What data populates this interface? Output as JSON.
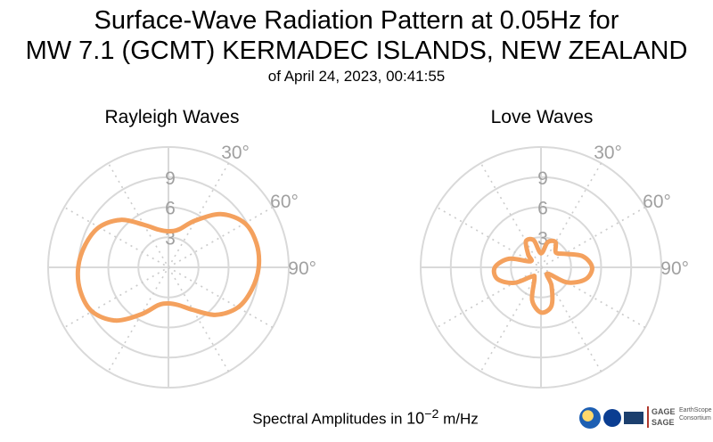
{
  "title": {
    "line1": "Surface-Wave Radiation Pattern at 0.05Hz for",
    "line2": "MW 7.1 (GCMT) KERMADEC ISLANDS, NEW ZEALAND",
    "line3": "of April 24, 2023, 00:41:55"
  },
  "footer": {
    "text": "Spectral Amplitudes in ",
    "base": "10",
    "exponent": "−2",
    "unit": " m/Hz"
  },
  "logos": {
    "gage": "GAGE",
    "sage": "SAGE",
    "earthscope": "EarthScope",
    "consortium": "Consortium"
  },
  "colors": {
    "curve": "#f4a15e",
    "grid": "#d9d9d9",
    "grid_dotted": "#cccccc",
    "tick_label": "#a0a0a0"
  },
  "chart_data": [
    {
      "type": "polar-line",
      "title": "Rayleigh Waves",
      "angle_zero": "north",
      "angle_direction": "clockwise",
      "radial_max": 12,
      "radial_ticks": [
        3,
        6,
        9
      ],
      "radial_tick_labels": [
        "3",
        "6",
        "9"
      ],
      "angle_tick_labels": [
        "30°",
        "60°",
        "90°"
      ],
      "angle_ticks_deg": [
        30,
        60,
        90
      ],
      "gridlines_deg_step": 30,
      "series": [
        {
          "theta_deg": [
            0,
            15,
            30,
            45,
            60,
            75,
            90,
            105,
            120,
            135,
            150,
            165,
            180,
            195,
            210,
            225,
            240,
            255,
            270,
            285,
            300,
            315,
            330,
            345
          ],
          "r": [
            3.6,
            3.9,
            5.4,
            7.5,
            8.8,
            9.1,
            9.0,
            8.6,
            8.0,
            6.7,
            4.9,
            3.9,
            3.6,
            3.9,
            5.4,
            7.5,
            8.8,
            9.1,
            9.0,
            8.6,
            8.0,
            6.7,
            4.9,
            3.9
          ]
        }
      ]
    },
    {
      "type": "polar-line",
      "title": "Love Waves",
      "angle_zero": "north",
      "angle_direction": "clockwise",
      "radial_max": 12,
      "radial_ticks": [
        3,
        6,
        9
      ],
      "radial_tick_labels": [
        "3",
        "6",
        "9"
      ],
      "angle_tick_labels": [
        "30°",
        "60°",
        "90°"
      ],
      "angle_ticks_deg": [
        30,
        60,
        90
      ],
      "gridlines_deg_step": 30,
      "series": [
        {
          "theta_deg": [
            0,
            15,
            30,
            45,
            60,
            75,
            90,
            105,
            120,
            135,
            150,
            165,
            180,
            195,
            210,
            225,
            240,
            255,
            270,
            285,
            300,
            315,
            330,
            345
          ],
          "r": [
            1.4,
            2.6,
            2.9,
            2.1,
            2.7,
            4.3,
            5.1,
            4.6,
            3.0,
            0.9,
            2.1,
            4.0,
            4.5,
            3.4,
            1.3,
            1.3,
            3.1,
            4.5,
            4.6,
            3.3,
            1.2,
            1.8,
            3.0,
            2.8
          ]
        }
      ]
    }
  ]
}
